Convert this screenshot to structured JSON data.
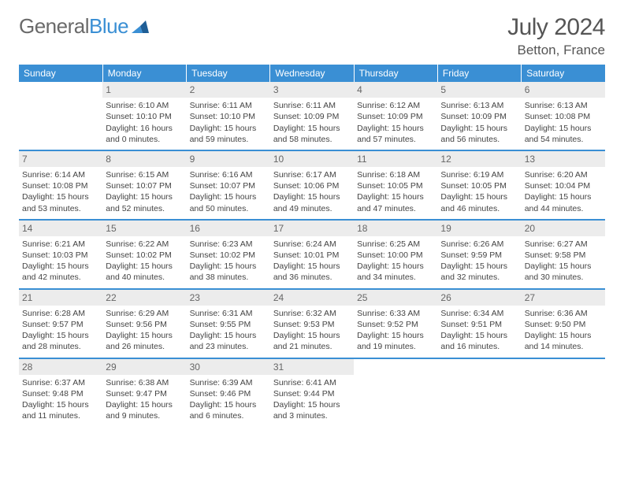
{
  "brand": {
    "part1": "General",
    "part2": "Blue"
  },
  "title": "July 2024",
  "location": "Betton, France",
  "colors": {
    "accent": "#3a8fd4",
    "text": "#555555",
    "cell_text": "#444444",
    "daynum_bg": "#ececec",
    "background": "#ffffff"
  },
  "day_headers": [
    "Sunday",
    "Monday",
    "Tuesday",
    "Wednesday",
    "Thursday",
    "Friday",
    "Saturday"
  ],
  "weeks": [
    [
      null,
      {
        "n": "1",
        "sr": "Sunrise: 6:10 AM",
        "ss": "Sunset: 10:10 PM",
        "d1": "Daylight: 16 hours",
        "d2": "and 0 minutes."
      },
      {
        "n": "2",
        "sr": "Sunrise: 6:11 AM",
        "ss": "Sunset: 10:10 PM",
        "d1": "Daylight: 15 hours",
        "d2": "and 59 minutes."
      },
      {
        "n": "3",
        "sr": "Sunrise: 6:11 AM",
        "ss": "Sunset: 10:09 PM",
        "d1": "Daylight: 15 hours",
        "d2": "and 58 minutes."
      },
      {
        "n": "4",
        "sr": "Sunrise: 6:12 AM",
        "ss": "Sunset: 10:09 PM",
        "d1": "Daylight: 15 hours",
        "d2": "and 57 minutes."
      },
      {
        "n": "5",
        "sr": "Sunrise: 6:13 AM",
        "ss": "Sunset: 10:09 PM",
        "d1": "Daylight: 15 hours",
        "d2": "and 56 minutes."
      },
      {
        "n": "6",
        "sr": "Sunrise: 6:13 AM",
        "ss": "Sunset: 10:08 PM",
        "d1": "Daylight: 15 hours",
        "d2": "and 54 minutes."
      }
    ],
    [
      {
        "n": "7",
        "sr": "Sunrise: 6:14 AM",
        "ss": "Sunset: 10:08 PM",
        "d1": "Daylight: 15 hours",
        "d2": "and 53 minutes."
      },
      {
        "n": "8",
        "sr": "Sunrise: 6:15 AM",
        "ss": "Sunset: 10:07 PM",
        "d1": "Daylight: 15 hours",
        "d2": "and 52 minutes."
      },
      {
        "n": "9",
        "sr": "Sunrise: 6:16 AM",
        "ss": "Sunset: 10:07 PM",
        "d1": "Daylight: 15 hours",
        "d2": "and 50 minutes."
      },
      {
        "n": "10",
        "sr": "Sunrise: 6:17 AM",
        "ss": "Sunset: 10:06 PM",
        "d1": "Daylight: 15 hours",
        "d2": "and 49 minutes."
      },
      {
        "n": "11",
        "sr": "Sunrise: 6:18 AM",
        "ss": "Sunset: 10:05 PM",
        "d1": "Daylight: 15 hours",
        "d2": "and 47 minutes."
      },
      {
        "n": "12",
        "sr": "Sunrise: 6:19 AM",
        "ss": "Sunset: 10:05 PM",
        "d1": "Daylight: 15 hours",
        "d2": "and 46 minutes."
      },
      {
        "n": "13",
        "sr": "Sunrise: 6:20 AM",
        "ss": "Sunset: 10:04 PM",
        "d1": "Daylight: 15 hours",
        "d2": "and 44 minutes."
      }
    ],
    [
      {
        "n": "14",
        "sr": "Sunrise: 6:21 AM",
        "ss": "Sunset: 10:03 PM",
        "d1": "Daylight: 15 hours",
        "d2": "and 42 minutes."
      },
      {
        "n": "15",
        "sr": "Sunrise: 6:22 AM",
        "ss": "Sunset: 10:02 PM",
        "d1": "Daylight: 15 hours",
        "d2": "and 40 minutes."
      },
      {
        "n": "16",
        "sr": "Sunrise: 6:23 AM",
        "ss": "Sunset: 10:02 PM",
        "d1": "Daylight: 15 hours",
        "d2": "and 38 minutes."
      },
      {
        "n": "17",
        "sr": "Sunrise: 6:24 AM",
        "ss": "Sunset: 10:01 PM",
        "d1": "Daylight: 15 hours",
        "d2": "and 36 minutes."
      },
      {
        "n": "18",
        "sr": "Sunrise: 6:25 AM",
        "ss": "Sunset: 10:00 PM",
        "d1": "Daylight: 15 hours",
        "d2": "and 34 minutes."
      },
      {
        "n": "19",
        "sr": "Sunrise: 6:26 AM",
        "ss": "Sunset: 9:59 PM",
        "d1": "Daylight: 15 hours",
        "d2": "and 32 minutes."
      },
      {
        "n": "20",
        "sr": "Sunrise: 6:27 AM",
        "ss": "Sunset: 9:58 PM",
        "d1": "Daylight: 15 hours",
        "d2": "and 30 minutes."
      }
    ],
    [
      {
        "n": "21",
        "sr": "Sunrise: 6:28 AM",
        "ss": "Sunset: 9:57 PM",
        "d1": "Daylight: 15 hours",
        "d2": "and 28 minutes."
      },
      {
        "n": "22",
        "sr": "Sunrise: 6:29 AM",
        "ss": "Sunset: 9:56 PM",
        "d1": "Daylight: 15 hours",
        "d2": "and 26 minutes."
      },
      {
        "n": "23",
        "sr": "Sunrise: 6:31 AM",
        "ss": "Sunset: 9:55 PM",
        "d1": "Daylight: 15 hours",
        "d2": "and 23 minutes."
      },
      {
        "n": "24",
        "sr": "Sunrise: 6:32 AM",
        "ss": "Sunset: 9:53 PM",
        "d1": "Daylight: 15 hours",
        "d2": "and 21 minutes."
      },
      {
        "n": "25",
        "sr": "Sunrise: 6:33 AM",
        "ss": "Sunset: 9:52 PM",
        "d1": "Daylight: 15 hours",
        "d2": "and 19 minutes."
      },
      {
        "n": "26",
        "sr": "Sunrise: 6:34 AM",
        "ss": "Sunset: 9:51 PM",
        "d1": "Daylight: 15 hours",
        "d2": "and 16 minutes."
      },
      {
        "n": "27",
        "sr": "Sunrise: 6:36 AM",
        "ss": "Sunset: 9:50 PM",
        "d1": "Daylight: 15 hours",
        "d2": "and 14 minutes."
      }
    ],
    [
      {
        "n": "28",
        "sr": "Sunrise: 6:37 AM",
        "ss": "Sunset: 9:48 PM",
        "d1": "Daylight: 15 hours",
        "d2": "and 11 minutes."
      },
      {
        "n": "29",
        "sr": "Sunrise: 6:38 AM",
        "ss": "Sunset: 9:47 PM",
        "d1": "Daylight: 15 hours",
        "d2": "and 9 minutes."
      },
      {
        "n": "30",
        "sr": "Sunrise: 6:39 AM",
        "ss": "Sunset: 9:46 PM",
        "d1": "Daylight: 15 hours",
        "d2": "and 6 minutes."
      },
      {
        "n": "31",
        "sr": "Sunrise: 6:41 AM",
        "ss": "Sunset: 9:44 PM",
        "d1": "Daylight: 15 hours",
        "d2": "and 3 minutes."
      },
      null,
      null,
      null
    ]
  ]
}
